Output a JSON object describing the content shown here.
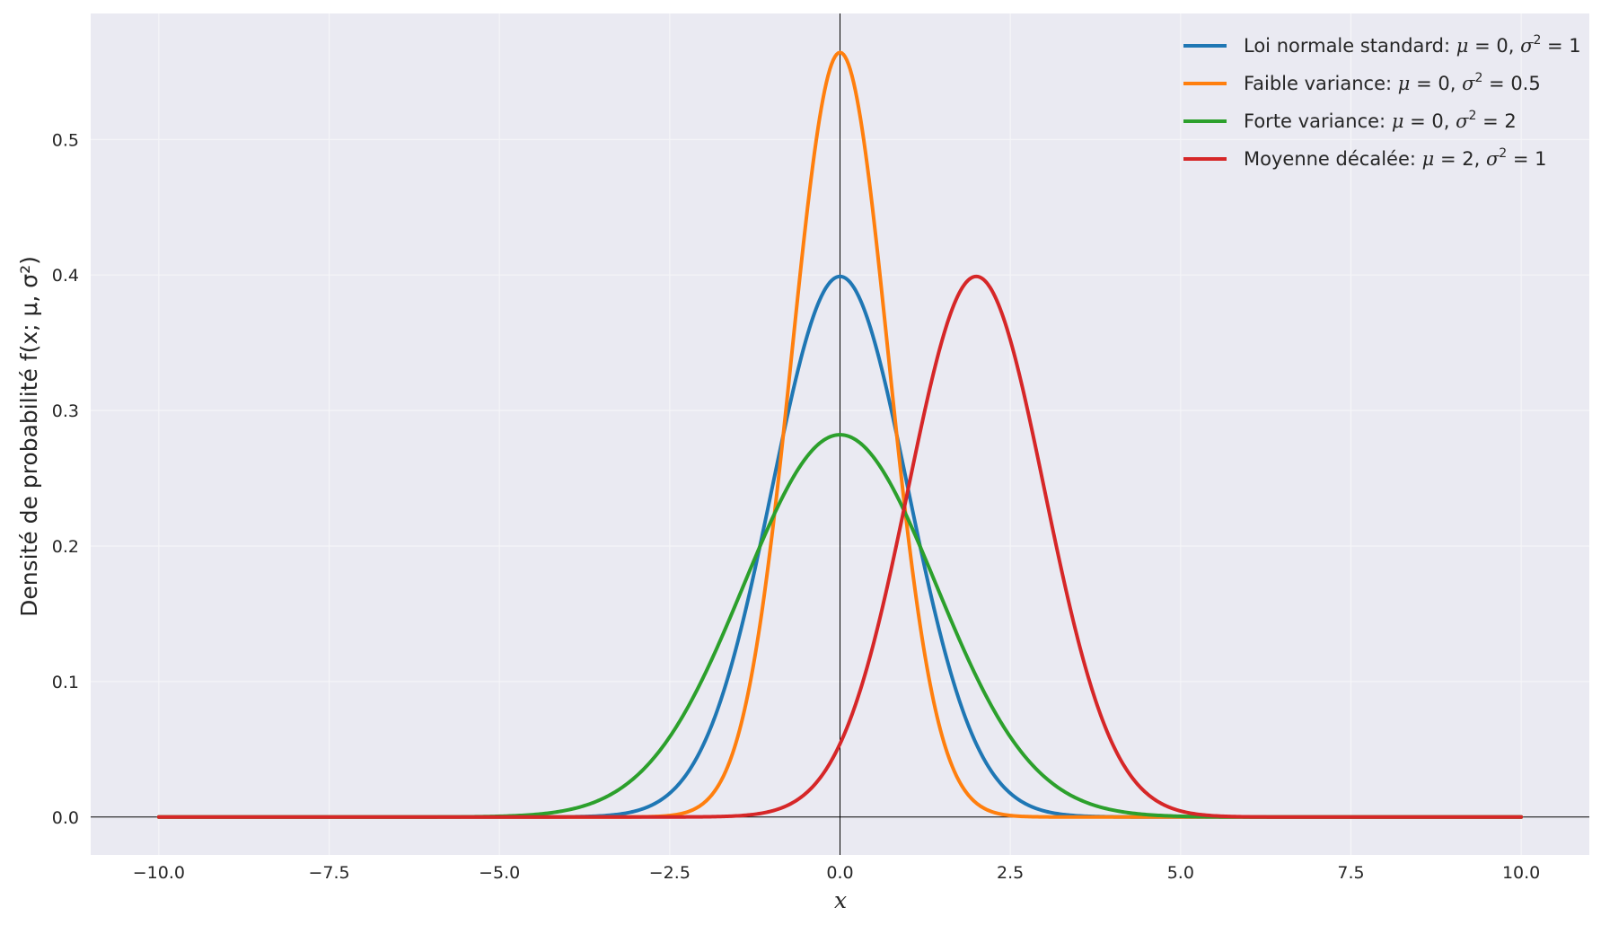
{
  "chart_data": {
    "type": "line",
    "title": "",
    "xlabel": "x",
    "ylabel": "Densité de probabilité f(x; μ, σ²)",
    "xlim": [
      -11,
      11
    ],
    "ylim": [
      -0.028,
      0.593
    ],
    "x_range": [
      -10,
      10
    ],
    "x_ticks": [
      -10.0,
      -7.5,
      -5.0,
      -2.5,
      0.0,
      2.5,
      5.0,
      7.5,
      10.0
    ],
    "x_tick_labels": [
      "−10.0",
      "−7.5",
      "−5.0",
      "−2.5",
      "0.0",
      "2.5",
      "5.0",
      "7.5",
      "10.0"
    ],
    "y_ticks": [
      0.0,
      0.1,
      0.2,
      0.3,
      0.4,
      0.5
    ],
    "y_tick_labels": [
      "0.0",
      "0.1",
      "0.2",
      "0.3",
      "0.4",
      "0.5"
    ],
    "grid": true,
    "reference_lines": {
      "x": 0,
      "y": 0
    },
    "legend_position": "top-right",
    "series": [
      {
        "name": "Loi normale standard: μ = 0, σ² = 1",
        "label_text": "Loi normale standard:",
        "mu": 0,
        "sigma2": 1,
        "color": "#1f77b4"
      },
      {
        "name": "Faible variance: μ = 0, σ² = 0.5",
        "label_text": "Faible variance:",
        "mu": 0,
        "sigma2": 0.5,
        "color": "#ff7f0e"
      },
      {
        "name": "Forte variance: μ = 0, σ² = 2",
        "label_text": "Forte variance:",
        "mu": 0,
        "sigma2": 2,
        "color": "#2ca02c"
      },
      {
        "name": "Moyenne décalée: μ = 2, σ² = 1",
        "label_text": "Moyenne décalée:",
        "mu": 2,
        "sigma2": 1,
        "color": "#d62728"
      }
    ]
  },
  "colors": {
    "plot_background": "#eaeaf2",
    "grid": "#f5f5f8",
    "reference_line": "#000000",
    "text": "#262626"
  }
}
